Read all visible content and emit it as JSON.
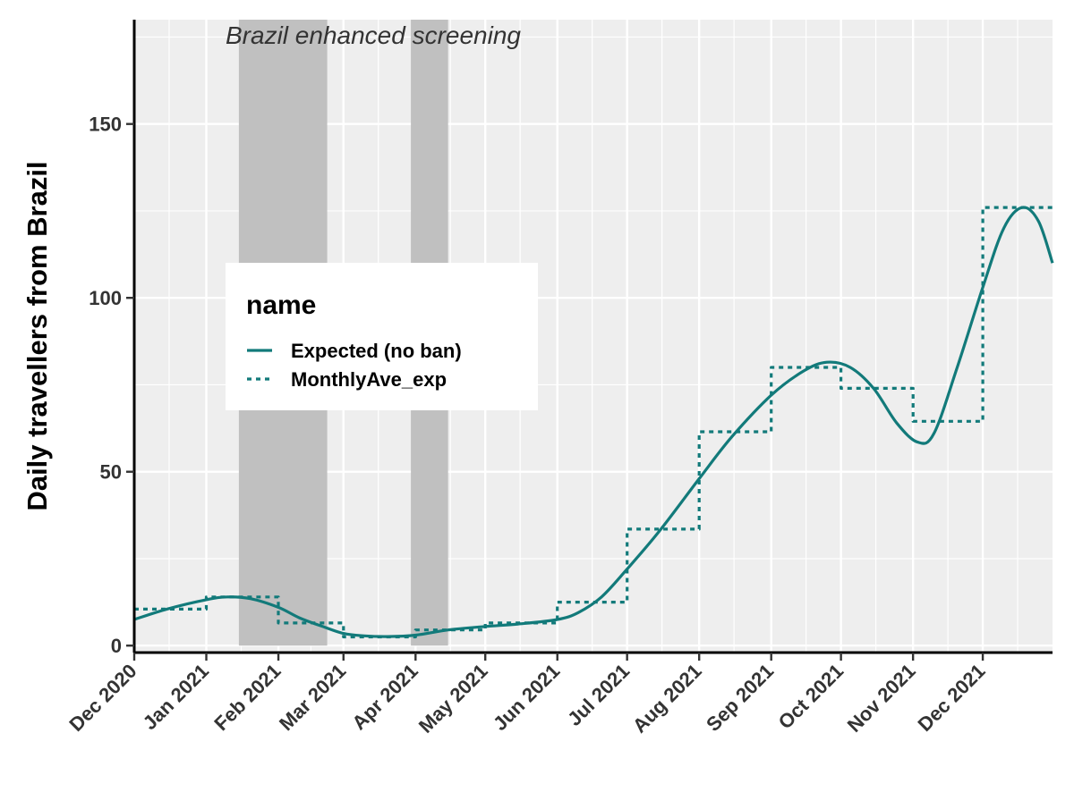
{
  "chart_data": {
    "type": "line",
    "title": "",
    "xlabel": "",
    "ylabel": "Daily travellers from Brazil",
    "annotation": "Brazil enhanced screening",
    "x_range": [
      "2020-12-01",
      "2021-12-31"
    ],
    "ylim": [
      -2,
      180
    ],
    "y_ticks": [
      0,
      50,
      100,
      150
    ],
    "x_ticks": [
      {
        "date": "2020-12-01",
        "label": "Dec 2020"
      },
      {
        "date": "2021-01-01",
        "label": "Jan 2021"
      },
      {
        "date": "2021-02-01",
        "label": "Feb 2021"
      },
      {
        "date": "2021-03-01",
        "label": "Mar 2021"
      },
      {
        "date": "2021-04-01",
        "label": "Apr 2021"
      },
      {
        "date": "2021-05-01",
        "label": "May 2021"
      },
      {
        "date": "2021-06-01",
        "label": "Jun 2021"
      },
      {
        "date": "2021-07-01",
        "label": "Jul 2021"
      },
      {
        "date": "2021-08-01",
        "label": "Aug 2021"
      },
      {
        "date": "2021-09-01",
        "label": "Sep 2021"
      },
      {
        "date": "2021-10-01",
        "label": "Oct 2021"
      },
      {
        "date": "2021-11-01",
        "label": "Nov 2021"
      },
      {
        "date": "2021-12-01",
        "label": "Dec 2021"
      }
    ],
    "shaded_periods": [
      {
        "start": "2021-01-15",
        "end": "2021-02-22"
      },
      {
        "start": "2021-03-30",
        "end": "2021-04-15"
      }
    ],
    "grid": true,
    "legend": {
      "title": "name",
      "position": "inside-left",
      "entries": [
        {
          "label": "Expected (no ban)",
          "style": "solid"
        },
        {
          "label": "MonthlyAve_exp",
          "style": "dotted"
        }
      ]
    },
    "colors": {
      "series": "#127a7a",
      "panel": "#eeeeee",
      "grid": "#ffffff",
      "shade": "#c0c0c0"
    },
    "series": [
      {
        "name": "Expected (no ban)",
        "style": "solid",
        "points": [
          [
            "2020-12-01",
            7.5
          ],
          [
            "2020-12-15",
            10.5
          ],
          [
            "2021-01-01",
            13.2
          ],
          [
            "2021-01-10",
            14.0
          ],
          [
            "2021-01-20",
            13.5
          ],
          [
            "2021-02-01",
            11.0
          ],
          [
            "2021-02-10",
            8.0
          ],
          [
            "2021-02-20",
            5.5
          ],
          [
            "2021-03-01",
            3.5
          ],
          [
            "2021-03-10",
            2.8
          ],
          [
            "2021-03-20",
            2.6
          ],
          [
            "2021-04-01",
            3.0
          ],
          [
            "2021-04-15",
            4.5
          ],
          [
            "2021-05-01",
            5.5
          ],
          [
            "2021-05-15",
            6.2
          ],
          [
            "2021-06-01",
            7.5
          ],
          [
            "2021-06-10",
            9.5
          ],
          [
            "2021-06-20",
            14.0
          ],
          [
            "2021-07-01",
            22.0
          ],
          [
            "2021-07-15",
            33.0
          ],
          [
            "2021-08-01",
            48.0
          ],
          [
            "2021-08-15",
            60.0
          ],
          [
            "2021-09-01",
            72.0
          ],
          [
            "2021-09-15",
            79.0
          ],
          [
            "2021-09-25",
            81.5
          ],
          [
            "2021-10-05",
            80.0
          ],
          [
            "2021-10-15",
            74.0
          ],
          [
            "2021-10-25",
            64.0
          ],
          [
            "2021-11-03",
            58.5
          ],
          [
            "2021-11-10",
            61.0
          ],
          [
            "2021-11-20",
            80.0
          ],
          [
            "2021-12-01",
            103.0
          ],
          [
            "2021-12-10",
            120.0
          ],
          [
            "2021-12-18",
            126.0
          ],
          [
            "2021-12-25",
            122.0
          ],
          [
            "2021-12-31",
            110.0
          ]
        ]
      },
      {
        "name": "MonthlyAve_exp",
        "style": "dotted",
        "step": true,
        "steps": [
          {
            "start": "2020-12-01",
            "end": "2021-01-01",
            "value": 10.5
          },
          {
            "start": "2021-01-01",
            "end": "2021-02-01",
            "value": 14.0
          },
          {
            "start": "2021-02-01",
            "end": "2021-03-01",
            "value": 6.5
          },
          {
            "start": "2021-03-01",
            "end": "2021-04-01",
            "value": 2.5
          },
          {
            "start": "2021-04-01",
            "end": "2021-05-01",
            "value": 4.5
          },
          {
            "start": "2021-05-01",
            "end": "2021-06-01",
            "value": 6.5
          },
          {
            "start": "2021-06-01",
            "end": "2021-07-01",
            "value": 12.5
          },
          {
            "start": "2021-07-01",
            "end": "2021-08-01",
            "value": 33.5
          },
          {
            "start": "2021-08-01",
            "end": "2021-09-01",
            "value": 61.5
          },
          {
            "start": "2021-09-01",
            "end": "2021-10-01",
            "value": 80.0
          },
          {
            "start": "2021-10-01",
            "end": "2021-11-01",
            "value": 74.0
          },
          {
            "start": "2021-11-01",
            "end": "2021-12-01",
            "value": 64.5
          },
          {
            "start": "2021-12-01",
            "end": "2021-12-31",
            "value": 126.0
          }
        ]
      }
    ]
  }
}
